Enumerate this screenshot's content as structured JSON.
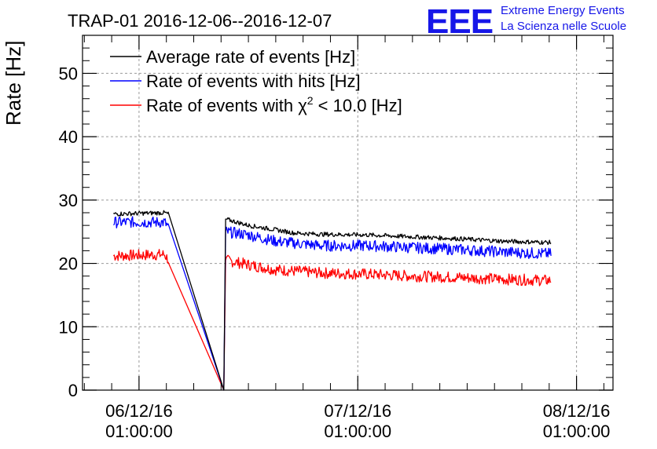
{
  "chart_data": {
    "type": "line",
    "title": "TRAP-01 2016-12-06--2016-12-07",
    "ylabel": "Rate [Hz]",
    "xlabel": "",
    "ylim": [
      0,
      56
    ],
    "grid": true,
    "legend_position": "top-left",
    "y_ticks": [
      "0",
      "10",
      "20",
      "30",
      "40",
      "50"
    ],
    "x_ticks": [
      {
        "date": "06/12/16",
        "time": "01:00:00",
        "hours": 0
      },
      {
        "date": "07/12/16",
        "time": "01:00:00",
        "hours": 24
      },
      {
        "date": "08/12/16",
        "time": "01:00:00",
        "hours": 48
      }
    ],
    "xlim_hours": [
      -6.2,
      52
    ],
    "series": [
      {
        "name": "Average rate of events [Hz]",
        "color": "#000000",
        "noise": 0.35,
        "points": [
          [
            -2.8,
            27.8
          ],
          [
            2.8,
            28.0
          ],
          [
            3.2,
            27.8
          ],
          [
            9.3,
            0.0
          ],
          [
            9.5,
            27.0
          ],
          [
            12,
            26.0
          ],
          [
            15,
            25.3
          ],
          [
            17,
            24.8
          ],
          [
            20,
            24.6
          ],
          [
            25,
            24.5
          ],
          [
            30,
            24.2
          ],
          [
            35,
            23.9
          ],
          [
            40,
            23.5
          ],
          [
            45.2,
            23.3
          ]
        ]
      },
      {
        "name": "Rate of events with hits [Hz]",
        "color": "#0000ff",
        "noise": 0.9,
        "points": [
          [
            -2.8,
            26.5
          ],
          [
            2.8,
            26.5
          ],
          [
            3.2,
            25.8
          ],
          [
            9.3,
            0.0
          ],
          [
            9.5,
            25.0
          ],
          [
            12,
            24.5
          ],
          [
            15,
            23.5
          ],
          [
            17,
            23.2
          ],
          [
            20,
            22.8
          ],
          [
            25,
            22.8
          ],
          [
            30,
            22.5
          ],
          [
            35,
            22.2
          ],
          [
            40,
            21.8
          ],
          [
            45.2,
            21.5
          ]
        ]
      },
      {
        "name": "Rate of events with χ² < 10.0 [Hz]",
        "name_legend_prefix": "Rate of events with χ",
        "name_legend_sup": "2",
        "name_legend_suffix": " < 10.0 [Hz]",
        "color": "#ff0000",
        "noise": 0.9,
        "points": [
          [
            -2.8,
            21.2
          ],
          [
            2.8,
            21.4
          ],
          [
            3.2,
            20.6
          ],
          [
            9.3,
            0.0
          ],
          [
            9.5,
            20.5
          ],
          [
            12,
            19.8
          ],
          [
            15,
            19.0
          ],
          [
            17,
            18.8
          ],
          [
            20,
            18.5
          ],
          [
            25,
            18.3
          ],
          [
            30,
            18.0
          ],
          [
            35,
            17.8
          ],
          [
            40,
            17.5
          ],
          [
            45.2,
            17.3
          ]
        ]
      }
    ]
  },
  "logo": {
    "mark": "EEE",
    "line1": "Extreme Energy Events",
    "line2": "La Scienza nelle Scuole"
  }
}
